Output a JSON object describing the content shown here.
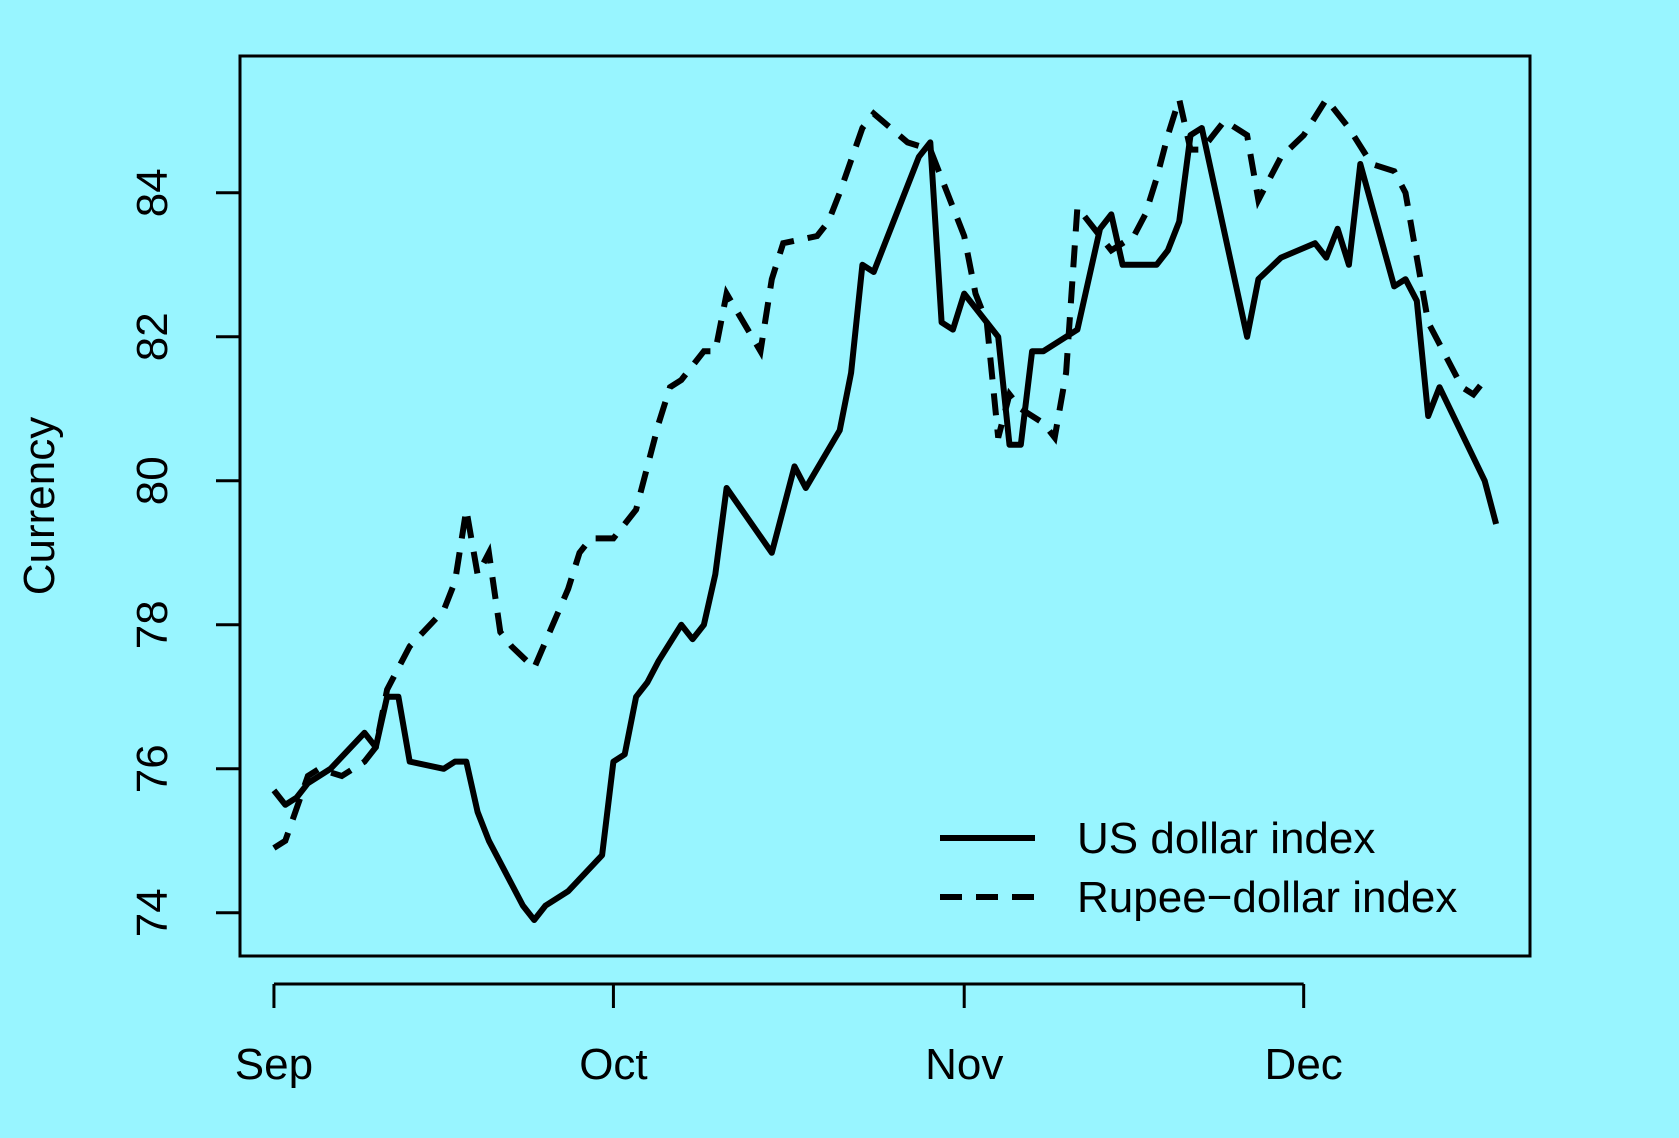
{
  "chart_data": {
    "type": "line",
    "title": "",
    "xlabel": "",
    "ylabel": "Currency",
    "background": "#98F5FF",
    "x_ticks": [
      "Sep",
      "Oct",
      "Nov",
      "Dec"
    ],
    "y_ticks": [
      74,
      76,
      78,
      80,
      82,
      84
    ],
    "ylim": [
      73.4,
      85.9
    ],
    "xlim": [
      "2020-08-29",
      "2020-12-21"
    ],
    "grid": false,
    "legend": {
      "position": "bottom-right"
    },
    "series": [
      {
        "name": "US dollar index",
        "line_style": "solid",
        "color": "#000000",
        "points": [
          [
            "2020-09-01",
            75.7
          ],
          [
            "2020-09-02",
            75.5
          ],
          [
            "2020-09-03",
            75.6
          ],
          [
            "2020-09-04",
            75.8
          ],
          [
            "2020-09-06",
            76.0
          ],
          [
            "2020-09-09",
            76.5
          ],
          [
            "2020-09-10",
            76.3
          ],
          [
            "2020-09-11",
            77.0
          ],
          [
            "2020-09-12",
            77.0
          ],
          [
            "2020-09-13",
            76.1
          ],
          [
            "2020-09-16",
            76.0
          ],
          [
            "2020-09-17",
            76.1
          ],
          [
            "2020-09-18",
            76.1
          ],
          [
            "2020-09-19",
            75.4
          ],
          [
            "2020-09-20",
            75.0
          ],
          [
            "2020-09-23",
            74.1
          ],
          [
            "2020-09-24",
            73.9
          ],
          [
            "2020-09-25",
            74.1
          ],
          [
            "2020-09-27",
            74.3
          ],
          [
            "2020-09-30",
            74.8
          ],
          [
            "2020-10-01",
            76.1
          ],
          [
            "2020-10-02",
            76.2
          ],
          [
            "2020-10-03",
            77.0
          ],
          [
            "2020-10-04",
            77.2
          ],
          [
            "2020-10-05",
            77.5
          ],
          [
            "2020-10-07",
            78.0
          ],
          [
            "2020-10-08",
            77.8
          ],
          [
            "2020-10-09",
            78.0
          ],
          [
            "2020-10-10",
            78.7
          ],
          [
            "2020-10-11",
            79.9
          ],
          [
            "2020-10-15",
            79.0
          ],
          [
            "2020-10-17",
            80.2
          ],
          [
            "2020-10-18",
            79.9
          ],
          [
            "2020-10-21",
            80.7
          ],
          [
            "2020-10-22",
            81.5
          ],
          [
            "2020-10-23",
            83.0
          ],
          [
            "2020-10-24",
            82.9
          ],
          [
            "2020-10-25",
            83.3
          ],
          [
            "2020-10-27",
            84.1
          ],
          [
            "2020-10-28",
            84.5
          ],
          [
            "2020-10-29",
            84.7
          ],
          [
            "2020-10-30",
            82.2
          ],
          [
            "2020-10-31",
            82.1
          ],
          [
            "2020-11-01",
            82.6
          ],
          [
            "2020-11-03",
            82.2
          ],
          [
            "2020-11-04",
            82.0
          ],
          [
            "2020-11-05",
            80.5
          ],
          [
            "2020-11-06",
            80.5
          ],
          [
            "2020-11-07",
            81.8
          ],
          [
            "2020-11-08",
            81.8
          ],
          [
            "2020-11-11",
            82.1
          ],
          [
            "2020-11-13",
            83.5
          ],
          [
            "2020-11-14",
            83.7
          ],
          [
            "2020-11-15",
            83.0
          ],
          [
            "2020-11-18",
            83.0
          ],
          [
            "2020-11-19",
            83.2
          ],
          [
            "2020-11-20",
            83.6
          ],
          [
            "2020-11-21",
            84.8
          ],
          [
            "2020-11-22",
            84.9
          ],
          [
            "2020-11-26",
            82.0
          ],
          [
            "2020-11-27",
            82.8
          ],
          [
            "2020-11-29",
            83.1
          ],
          [
            "2020-12-02",
            83.3
          ],
          [
            "2020-12-03",
            83.1
          ],
          [
            "2020-12-04",
            83.5
          ],
          [
            "2020-12-05",
            83.0
          ],
          [
            "2020-12-06",
            84.4
          ],
          [
            "2020-12-09",
            82.7
          ],
          [
            "2020-12-10",
            82.8
          ],
          [
            "2020-12-11",
            82.5
          ],
          [
            "2020-12-12",
            80.9
          ],
          [
            "2020-12-13",
            81.3
          ],
          [
            "2020-12-17",
            80.0
          ],
          [
            "2020-12-18",
            79.4
          ]
        ]
      },
      {
        "name": "Rupee−dollar index",
        "line_style": "dashed",
        "color": "#000000",
        "points": [
          [
            "2020-09-01",
            74.9
          ],
          [
            "2020-09-02",
            75.0
          ],
          [
            "2020-09-04",
            75.9
          ],
          [
            "2020-09-05",
            76.0
          ],
          [
            "2020-09-07",
            75.9
          ],
          [
            "2020-09-09",
            76.1
          ],
          [
            "2020-09-10",
            76.3
          ],
          [
            "2020-09-11",
            77.1
          ],
          [
            "2020-09-12",
            77.4
          ],
          [
            "2020-09-13",
            77.7
          ],
          [
            "2020-09-16",
            78.2
          ],
          [
            "2020-09-17",
            78.6
          ],
          [
            "2020-09-18",
            79.6
          ],
          [
            "2020-09-19",
            78.7
          ],
          [
            "2020-09-20",
            79.0
          ],
          [
            "2020-09-21",
            77.9
          ],
          [
            "2020-09-22",
            77.7
          ],
          [
            "2020-09-24",
            77.4
          ],
          [
            "2020-09-27",
            78.5
          ],
          [
            "2020-09-28",
            79.0
          ],
          [
            "2020-09-29",
            79.2
          ],
          [
            "2020-10-01",
            79.2
          ],
          [
            "2020-10-03",
            79.6
          ],
          [
            "2020-10-04",
            80.2
          ],
          [
            "2020-10-05",
            80.8
          ],
          [
            "2020-10-06",
            81.3
          ],
          [
            "2020-10-07",
            81.4
          ],
          [
            "2020-10-08",
            81.6
          ],
          [
            "2020-10-09",
            81.8
          ],
          [
            "2020-10-10",
            81.8
          ],
          [
            "2020-10-11",
            82.6
          ],
          [
            "2020-10-14",
            81.8
          ],
          [
            "2020-10-15",
            82.8
          ],
          [
            "2020-10-16",
            83.3
          ],
          [
            "2020-10-19",
            83.4
          ],
          [
            "2020-10-20",
            83.6
          ],
          [
            "2020-10-21",
            84.0
          ],
          [
            "2020-10-23",
            84.9
          ],
          [
            "2020-10-24",
            85.1
          ],
          [
            "2020-10-27",
            84.7
          ],
          [
            "2020-10-29",
            84.6
          ],
          [
            "2020-10-30",
            84.2
          ],
          [
            "2020-11-01",
            83.4
          ],
          [
            "2020-11-02",
            82.6
          ],
          [
            "2020-11-03",
            82.2
          ],
          [
            "2020-11-04",
            80.6
          ],
          [
            "2020-11-05",
            81.2
          ],
          [
            "2020-11-06",
            81.0
          ],
          [
            "2020-11-08",
            80.8
          ],
          [
            "2020-11-09",
            80.6
          ],
          [
            "2020-11-10",
            81.5
          ],
          [
            "2020-11-11",
            83.8
          ],
          [
            "2020-11-14",
            83.2
          ],
          [
            "2020-11-16",
            83.4
          ],
          [
            "2020-11-17",
            83.7
          ],
          [
            "2020-11-18",
            84.2
          ],
          [
            "2020-11-19",
            84.8
          ],
          [
            "2020-11-20",
            85.3
          ],
          [
            "2020-11-21",
            84.6
          ],
          [
            "2020-11-22",
            84.6
          ],
          [
            "2020-11-24",
            85.0
          ],
          [
            "2020-11-26",
            84.8
          ],
          [
            "2020-11-27",
            83.9
          ],
          [
            "2020-11-29",
            84.5
          ],
          [
            "2020-12-01",
            84.8
          ],
          [
            "2020-12-03",
            85.3
          ],
          [
            "2020-12-05",
            84.9
          ],
          [
            "2020-12-07",
            84.4
          ],
          [
            "2020-12-09",
            84.3
          ],
          [
            "2020-12-10",
            84.0
          ],
          [
            "2020-12-11",
            83.1
          ],
          [
            "2020-12-12",
            82.2
          ],
          [
            "2020-12-14",
            81.6
          ],
          [
            "2020-12-15",
            81.3
          ],
          [
            "2020-12-16",
            81.2
          ],
          [
            "2020-12-17",
            81.4
          ]
        ]
      }
    ]
  }
}
